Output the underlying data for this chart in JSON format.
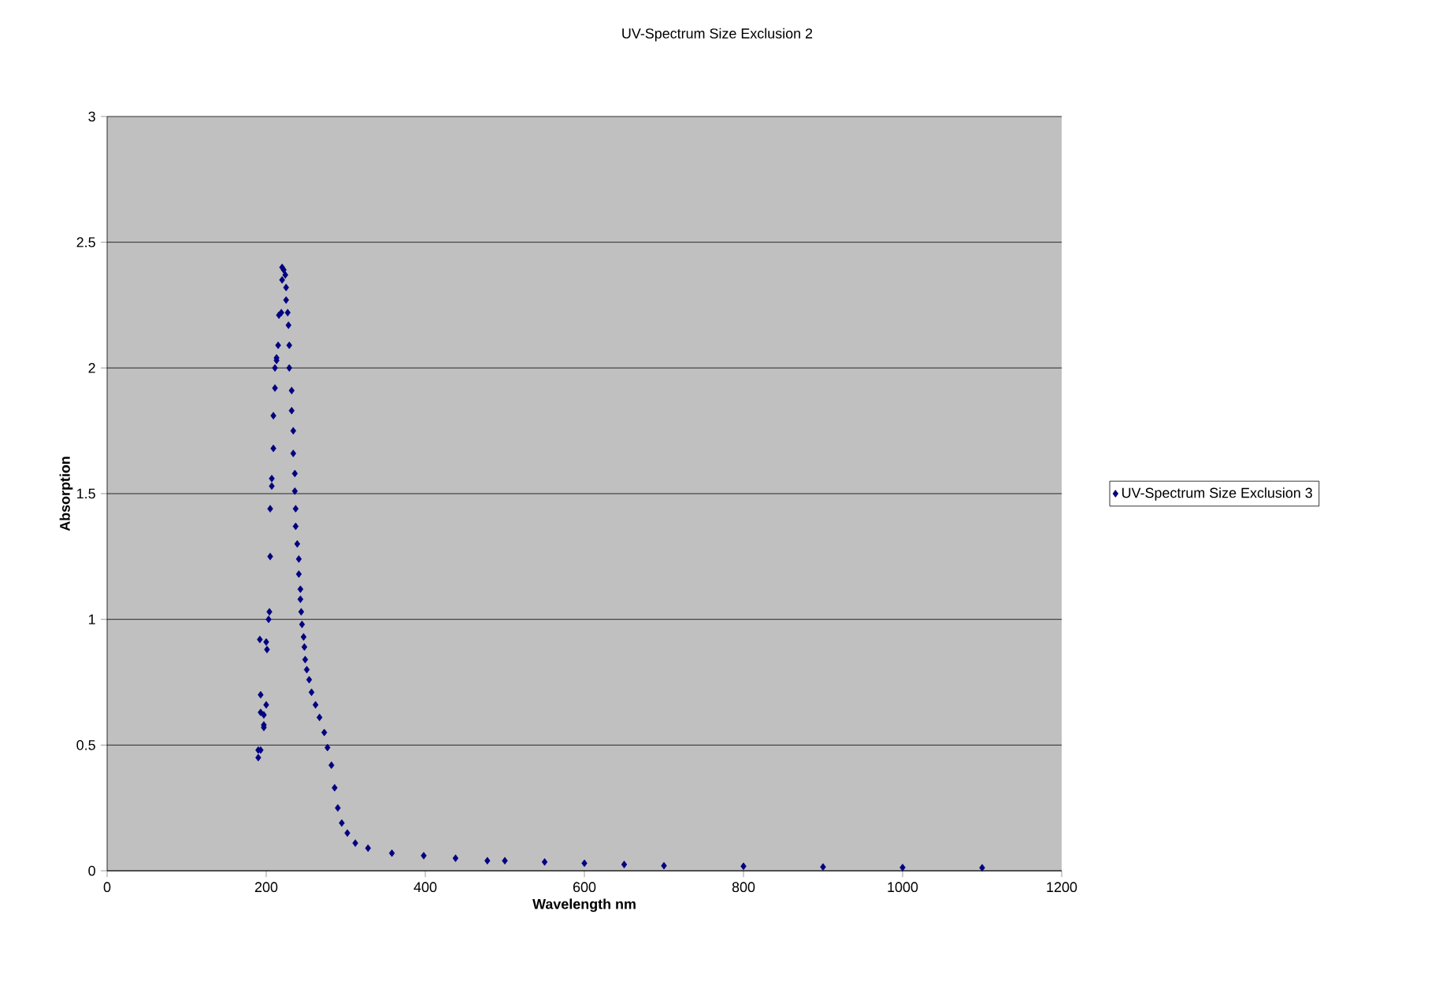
{
  "chart_data": {
    "type": "scatter",
    "title": "UV-Spectrum Size Exclusion 2",
    "xlabel": "Wavelength nm",
    "ylabel": "Absorption",
    "series": [
      {
        "name": "UV-Spectrum Size Exclusion 3",
        "color": "#000080",
        "x": [
          190,
          190,
          193,
          197,
          197,
          193,
          197,
          200,
          193,
          192,
          200,
          201,
          203,
          204,
          205,
          205,
          207,
          207,
          209,
          209,
          211,
          211,
          213,
          213,
          215,
          216,
          219,
          220,
          222,
          220,
          224,
          225,
          225,
          227,
          228,
          229,
          229,
          232,
          232,
          234,
          234,
          236,
          236,
          237,
          237,
          239,
          241,
          241,
          243,
          243,
          244,
          245,
          247,
          248,
          249,
          251,
          254,
          257,
          262,
          267,
          273,
          277,
          282,
          286,
          290,
          295,
          302,
          312,
          328,
          358,
          398,
          438,
          478,
          500,
          550,
          600,
          650,
          700,
          800,
          900,
          1000,
          1100
        ],
        "values": [
          0.45,
          0.48,
          0.48,
          0.57,
          0.58,
          0.63,
          0.62,
          0.66,
          0.7,
          0.92,
          0.91,
          0.88,
          1.0,
          1.03,
          1.25,
          1.44,
          1.53,
          1.56,
          1.68,
          1.81,
          1.92,
          2.0,
          2.03,
          2.04,
          2.09,
          2.21,
          2.22,
          2.4,
          2.39,
          2.35,
          2.37,
          2.32,
          2.27,
          2.22,
          2.17,
          2.09,
          2.0,
          1.91,
          1.83,
          1.75,
          1.66,
          1.58,
          1.51,
          1.44,
          1.37,
          1.3,
          1.24,
          1.18,
          1.12,
          1.08,
          1.03,
          0.98,
          0.93,
          0.89,
          0.84,
          0.8,
          0.76,
          0.71,
          0.66,
          0.61,
          0.55,
          0.49,
          0.42,
          0.33,
          0.25,
          0.19,
          0.15,
          0.11,
          0.09,
          0.07,
          0.06,
          0.05,
          0.04,
          0.04,
          0.035,
          0.03,
          0.025,
          0.02,
          0.018,
          0.015,
          0.013,
          0.012
        ]
      }
    ],
    "xlim": [
      0,
      1200
    ],
    "xticks": [
      0,
      200,
      400,
      600,
      800,
      1000,
      1200
    ],
    "ylim": [
      0,
      3
    ],
    "yticks": [
      0,
      0.5,
      1,
      1.5,
      2,
      2.5,
      3
    ],
    "grid": "y",
    "legend": "right",
    "marker": "diamond"
  }
}
